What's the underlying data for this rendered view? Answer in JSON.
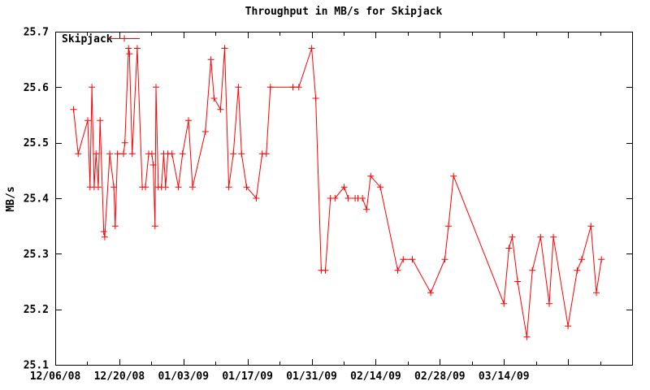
{
  "title": "Throughput in MB/s for Skipjack",
  "legend": {
    "label": "Skipjack",
    "position": "top-left-inside"
  },
  "colors": {
    "series": "#ff0000",
    "text": "#000000",
    "axis": "#000000",
    "background": "#ffffff"
  },
  "chart_data": {
    "type": "line",
    "title": "Throughput in MB/s for Skipjack",
    "xlabel": "",
    "ylabel": "MB/s",
    "ylim": [
      25.1,
      25.7
    ],
    "y_tick_step": 0.1,
    "y_tick_values": [
      25.1,
      25.2,
      25.3,
      25.4,
      25.5,
      25.6,
      25.7
    ],
    "y_tick_labels": [
      "25.1",
      "25.2",
      "25.3",
      "25.4",
      "25.5",
      "25.6",
      "25.7"
    ],
    "x_range_days": [
      0,
      126
    ],
    "x_start_date": "12/06/08",
    "x_tick_days": [
      0,
      14,
      28,
      42,
      56,
      70,
      84,
      98,
      112,
      126
    ],
    "x_tick_labels": [
      "12/06/08",
      "12/20/08",
      "01/03/09",
      "01/17/09",
      "01/31/09",
      "02/14/09",
      "02/28/09",
      "03/14/09",
      "",
      ""
    ],
    "x_minor_tick_days": [
      7,
      21,
      35,
      49,
      63,
      77,
      91,
      105,
      119
    ],
    "grid": false,
    "marker": "plus",
    "legend_position": "top-left-inside",
    "series": [
      {
        "name": "Skipjack",
        "color": "#ff0000",
        "points": [
          [
            4.0,
            "12/10/08",
            25.56
          ],
          [
            5.0,
            "12/11/08",
            25.48
          ],
          [
            7.1,
            "12/13/08",
            25.54
          ],
          [
            7.6,
            "12/14/08",
            25.42
          ],
          [
            8.0,
            "12/14/08",
            25.6
          ],
          [
            8.5,
            "12/15/08",
            25.42
          ],
          [
            8.9,
            "12/15/08",
            25.48
          ],
          [
            9.4,
            "12/15/08",
            25.42
          ],
          [
            9.8,
            "12/16/08",
            25.54
          ],
          [
            10.6,
            "12/17/08",
            25.34
          ],
          [
            10.8,
            "12/17/08",
            25.33
          ],
          [
            11.9,
            "12/18/08",
            25.48
          ],
          [
            12.8,
            "12/19/08",
            25.42
          ],
          [
            13.1,
            "12/19/08",
            25.35
          ],
          [
            13.6,
            "12/20/08",
            25.48
          ],
          [
            14.9,
            "12/21/08",
            25.48
          ],
          [
            15.2,
            "12/21/08",
            25.5
          ],
          [
            16.0,
            "12/22/08",
            25.67
          ],
          [
            16.2,
            "12/22/08",
            25.66
          ],
          [
            16.8,
            "12/23/08",
            25.48
          ],
          [
            17.9,
            "12/24/08",
            25.67
          ],
          [
            19.0,
            "12/25/08",
            25.42
          ],
          [
            19.7,
            "12/26/08",
            25.42
          ],
          [
            20.4,
            "12/26/08",
            25.48
          ],
          [
            21.1,
            "12/27/08",
            25.48
          ],
          [
            21.4,
            "12/27/08",
            25.46
          ],
          [
            21.8,
            "12/28/08",
            25.35
          ],
          [
            22.0,
            "12/28/08",
            25.6
          ],
          [
            22.5,
            "12/29/08",
            25.42
          ],
          [
            23.2,
            "12/29/08",
            25.42
          ],
          [
            23.7,
            "12/30/08",
            25.48
          ],
          [
            24.1,
            "12/30/08",
            25.42
          ],
          [
            24.6,
            "12/31/08",
            25.48
          ],
          [
            25.5,
            "12/31/08",
            25.48
          ],
          [
            26.9,
            "01/02/09",
            25.42
          ],
          [
            27.8,
            "01/03/09",
            25.48
          ],
          [
            29.1,
            "01/04/09",
            25.54
          ],
          [
            30.0,
            "01/05/09",
            25.42
          ],
          [
            32.8,
            "01/08/09",
            25.52
          ],
          [
            34.0,
            "01/09/09",
            25.65
          ],
          [
            34.7,
            "01/10/09",
            25.58
          ],
          [
            36.1,
            "01/11/09",
            25.56
          ],
          [
            37.0,
            "01/12/09",
            25.67
          ],
          [
            37.9,
            "01/13/09",
            25.42
          ],
          [
            38.9,
            "01/14/09",
            25.48
          ],
          [
            40.0,
            "01/15/09",
            25.6
          ],
          [
            40.7,
            "01/16/09",
            25.48
          ],
          [
            41.8,
            "01/17/09",
            25.42
          ],
          [
            43.9,
            "01/19/09",
            25.4
          ],
          [
            45.2,
            "01/20/09",
            25.48
          ],
          [
            46.1,
            "01/21/09",
            25.48
          ],
          [
            47.0,
            "01/22/09",
            25.6
          ],
          [
            51.9,
            "01/27/09",
            25.6
          ],
          [
            53.2,
            "01/28/09",
            25.6
          ],
          [
            56.0,
            "01/31/09",
            25.67
          ],
          [
            56.9,
            "02/01/09",
            25.58
          ],
          [
            58.1,
            "02/02/09",
            25.27
          ],
          [
            59.0,
            "02/03/09",
            25.27
          ],
          [
            60.1,
            "02/04/09",
            25.4
          ],
          [
            61.1,
            "02/05/09",
            25.4
          ],
          [
            63.1,
            "02/07/09",
            25.42
          ],
          [
            64.0,
            "02/08/09",
            25.4
          ],
          [
            65.5,
            "02/09/09",
            25.4
          ],
          [
            66.1,
            "02/10/09",
            25.4
          ],
          [
            67.1,
            "02/11/09",
            25.4
          ],
          [
            68.0,
            "02/12/09",
            25.38
          ],
          [
            68.9,
            "02/13/09",
            25.44
          ],
          [
            71.0,
            "02/15/09",
            25.42
          ],
          [
            74.8,
            "02/19/09",
            25.27
          ],
          [
            76.0,
            "02/20/09",
            25.29
          ],
          [
            78.0,
            "02/22/09",
            25.29
          ],
          [
            82.0,
            "02/26/09",
            25.23
          ],
          [
            85.1,
            "03/01/09",
            25.29
          ],
          [
            85.9,
            "03/02/09",
            25.35
          ],
          [
            87.0,
            "03/03/09",
            25.44
          ],
          [
            98.0,
            "03/14/09",
            25.21
          ],
          [
            99.1,
            "03/15/09",
            25.31
          ],
          [
            99.8,
            "03/16/09",
            25.33
          ],
          [
            101.0,
            "03/17/09",
            25.25
          ],
          [
            103.0,
            "03/19/09",
            25.15
          ],
          [
            104.2,
            "03/20/09",
            25.27
          ],
          [
            106.0,
            "03/22/09",
            25.33
          ],
          [
            107.9,
            "03/24/09",
            25.21
          ],
          [
            108.8,
            "03/25/09",
            25.33
          ],
          [
            112.0,
            "03/28/09",
            25.17
          ],
          [
            114.0,
            "03/30/09",
            25.27
          ],
          [
            115.0,
            "03/31/09",
            25.29
          ],
          [
            117.0,
            "04/02/09",
            25.35
          ],
          [
            118.2,
            "04/03/09",
            25.23
          ],
          [
            119.3,
            "04/04/09",
            25.29
          ]
        ]
      }
    ]
  }
}
